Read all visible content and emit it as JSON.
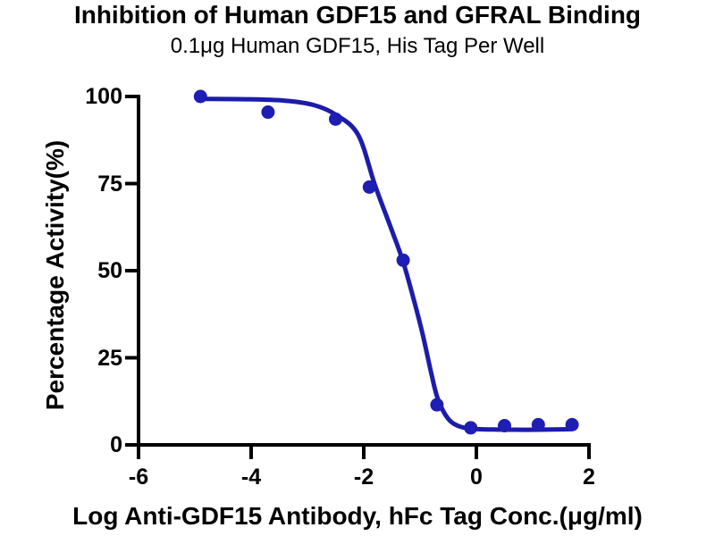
{
  "chart_data": {
    "type": "scatter",
    "title": "Inhibition of Human GDF15 and GFRAL Binding",
    "subtitle": "0.1μg Human GDF15, His Tag Per Well",
    "xlabel": "Log Anti-GDF15 Antibody, hFc Tag Conc.(μg/ml)",
    "ylabel": "Percentage Activity(%)",
    "xlim": [
      -6,
      2
    ],
    "ylim": [
      0,
      100
    ],
    "x_ticks": [
      "-6",
      "-4",
      "-2",
      "0",
      "2"
    ],
    "x_tick_values": [
      -6,
      -4,
      -2,
      0,
      2
    ],
    "y_ticks": [
      "0",
      "25",
      "50",
      "75",
      "100"
    ],
    "y_tick_values": [
      0,
      25,
      50,
      75,
      100
    ],
    "grid": false,
    "legend": "none",
    "colors": {
      "points": "#1e1eb4",
      "curve": "#1c1caa",
      "axis": "#000000",
      "text": "#000000",
      "background": "#ffffff"
    },
    "series": [
      {
        "label": "Anti-GDF15 Antibody",
        "points": [
          {
            "x": -4.9,
            "y": 100
          },
          {
            "x": -3.7,
            "y": 95.5
          },
          {
            "x": -2.5,
            "y": 93.5
          },
          {
            "x": -1.9,
            "y": 74
          },
          {
            "x": -1.3,
            "y": 53
          },
          {
            "x": -0.7,
            "y": 11.5
          },
          {
            "x": -0.1,
            "y": 4.9
          },
          {
            "x": 0.5,
            "y": 5.5
          },
          {
            "x": 1.1,
            "y": 5.8
          },
          {
            "x": 1.7,
            "y": 5.8
          }
        ]
      }
    ],
    "fit_curve": {
      "description": "sigmoidal dose-response fit, top ~99.3, bottom ~4.4, mid ~ -1.3",
      "samples": [
        {
          "x": -4.93,
          "y": 99.3
        },
        {
          "x": -4.1,
          "y": 99.2
        },
        {
          "x": -3.4,
          "y": 98.8
        },
        {
          "x": -2.9,
          "y": 97.6
        },
        {
          "x": -2.5,
          "y": 94.8
        },
        {
          "x": -2.1,
          "y": 89.0
        },
        {
          "x": -1.8,
          "y": 74.5
        },
        {
          "x": -1.5,
          "y": 61.5
        },
        {
          "x": -1.3,
          "y": 52.5
        },
        {
          "x": -1.1,
          "y": 41.0
        },
        {
          "x": -0.95,
          "y": 31.5
        },
        {
          "x": -0.8,
          "y": 20.5
        },
        {
          "x": -0.68,
          "y": 13.0
        },
        {
          "x": -0.5,
          "y": 7.5
        },
        {
          "x": -0.3,
          "y": 5.3
        },
        {
          "x": -0.05,
          "y": 4.6
        },
        {
          "x": 0.3,
          "y": 4.4
        },
        {
          "x": 0.7,
          "y": 4.35
        },
        {
          "x": 1.1,
          "y": 4.35
        },
        {
          "x": 1.68,
          "y": 4.5
        }
      ]
    }
  }
}
